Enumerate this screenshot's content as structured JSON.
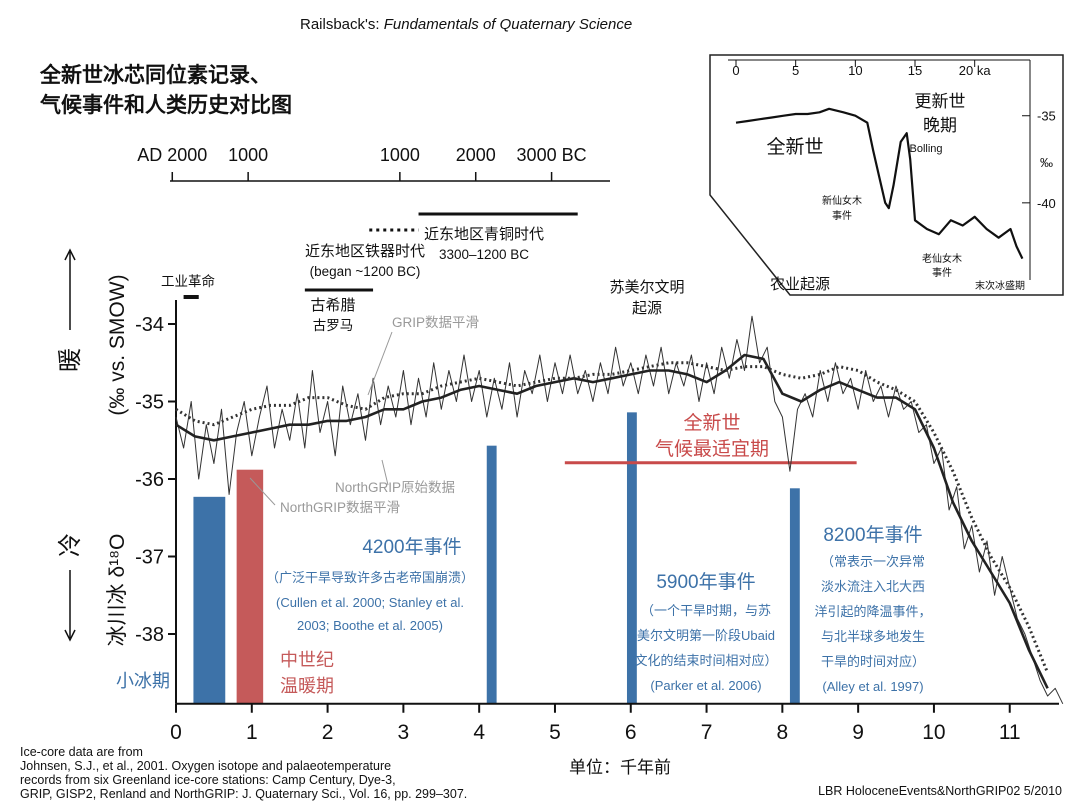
{
  "chart_data": {
    "type": "line",
    "header": [
      "Railsback's: ",
      "Fundamentals of Quaternary Science"
    ],
    "title_lines": [
      "全新世冰芯同位素记录、",
      "气候事件和人类历史对比图"
    ],
    "x_label": "单位：千年前",
    "y_label": "(‰ vs. SMOW)",
    "y_label2": "冰川冰 δ¹⁸O",
    "warm": "暖",
    "cold": "冷",
    "xlim": [
      0,
      11.65
    ],
    "xticks": [
      0,
      1,
      2,
      3,
      4,
      5,
      6,
      7,
      8,
      9,
      10,
      11
    ],
    "ylim": [
      -38.9,
      -33.5
    ],
    "yticks": [
      -34,
      -35,
      -36,
      -37,
      -38
    ],
    "top_axis": {
      "xlim": [
        -0.08,
        5.72
      ],
      "ticks": [
        {
          "value": -0.05,
          "label": "AD 2000"
        },
        {
          "value": 0.95,
          "label": "1000"
        },
        {
          "value": 2.95,
          "label": "1000"
        },
        {
          "value": 3.95,
          "label": "2000"
        },
        {
          "value": 4.95,
          "label": "3000 BC"
        }
      ]
    },
    "series": [
      {
        "name": "NorthGRIP原始数据",
        "color": "#333333",
        "line_style": "thin",
        "x": [
          0,
          0.1,
          0.2,
          0.3,
          0.4,
          0.5,
          0.6,
          0.7,
          0.8,
          0.9,
          1,
          1.1,
          1.2,
          1.3,
          1.4,
          1.5,
          1.6,
          1.7,
          1.8,
          1.9,
          2,
          2.1,
          2.2,
          2.3,
          2.4,
          2.5,
          2.6,
          2.7,
          2.8,
          2.9,
          3,
          3.1,
          3.2,
          3.3,
          3.4,
          3.5,
          3.6,
          3.7,
          3.8,
          3.9,
          4,
          4.1,
          4.2,
          4.3,
          4.4,
          4.5,
          4.6,
          4.7,
          4.8,
          4.9,
          5,
          5.1,
          5.2,
          5.3,
          5.4,
          5.5,
          5.6,
          5.7,
          5.8,
          5.9,
          6,
          6.1,
          6.2,
          6.3,
          6.4,
          6.5,
          6.6,
          6.7,
          6.8,
          6.9,
          7,
          7.1,
          7.2,
          7.3,
          7.4,
          7.5,
          7.6,
          7.7,
          7.8,
          7.9,
          8,
          8.1,
          8.2,
          8.3,
          8.4,
          8.5,
          8.6,
          8.7,
          8.8,
          8.9,
          9,
          9.1,
          9.2,
          9.3,
          9.4,
          9.5,
          9.6,
          9.7,
          9.8,
          9.9,
          10,
          10.1,
          10.2,
          10.3,
          10.4,
          10.5,
          10.6,
          10.7,
          10.8,
          10.9,
          11,
          11.1,
          11.2,
          11.3,
          11.4,
          11.5,
          11.6,
          11.7
        ],
        "values": [
          -35.2,
          -35.6,
          -35.0,
          -36.0,
          -35.3,
          -35.8,
          -35.1,
          -36.2,
          -35.4,
          -35.0,
          -35.7,
          -35.2,
          -34.8,
          -35.6,
          -35.1,
          -35.5,
          -34.9,
          -35.6,
          -34.6,
          -35.4,
          -35.0,
          -35.7,
          -34.8,
          -35.3,
          -34.9,
          -35.5,
          -34.7,
          -35.3,
          -34.8,
          -35.2,
          -34.6,
          -35.3,
          -34.7,
          -35.2,
          -34.5,
          -35.1,
          -34.6,
          -35.0,
          -34.4,
          -35.0,
          -34.6,
          -35.2,
          -34.7,
          -35.1,
          -34.5,
          -35.2,
          -34.6,
          -34.9,
          -34.4,
          -35.0,
          -34.5,
          -34.9,
          -34.4,
          -34.9,
          -34.6,
          -35.0,
          -34.5,
          -34.9,
          -34.3,
          -34.8,
          -34.5,
          -34.9,
          -34.4,
          -34.8,
          -34.3,
          -34.9,
          -34.5,
          -34.8,
          -34.4,
          -35.0,
          -34.5,
          -34.9,
          -34.3,
          -34.7,
          -34.2,
          -34.6,
          -33.9,
          -34.5,
          -34.3,
          -35.0,
          -35.2,
          -35.9,
          -35.1,
          -34.9,
          -35.2,
          -34.6,
          -35.0,
          -34.5,
          -34.9,
          -34.7,
          -35.1,
          -34.6,
          -35.0,
          -34.8,
          -35.2,
          -34.8,
          -35.1,
          -35.0,
          -35.4,
          -35.3,
          -35.8,
          -35.6,
          -36.4,
          -36.1,
          -36.9,
          -36.6,
          -37.2,
          -36.8,
          -37.5,
          -37.0,
          -37.4,
          -37.8,
          -38.0,
          -38.3,
          -38.6,
          -38.8,
          -38.7,
          -38.9
        ]
      },
      {
        "name": "NorthGRIP数据平滑",
        "color": "#222222",
        "line_style": "thick",
        "x": [
          0,
          0.25,
          0.5,
          0.75,
          1,
          1.25,
          1.5,
          1.75,
          2,
          2.25,
          2.5,
          2.75,
          3,
          3.25,
          3.5,
          3.75,
          4,
          4.25,
          4.5,
          4.75,
          5,
          5.25,
          5.5,
          5.75,
          6,
          6.25,
          6.5,
          6.75,
          7,
          7.25,
          7.5,
          7.75,
          8,
          8.25,
          8.5,
          8.75,
          9,
          9.25,
          9.5,
          9.75,
          10,
          10.25,
          10.5,
          10.75,
          11,
          11.25,
          11.5
        ],
        "values": [
          -35.3,
          -35.45,
          -35.5,
          -35.45,
          -35.4,
          -35.35,
          -35.3,
          -35.3,
          -35.25,
          -35.25,
          -35.2,
          -35.1,
          -35.1,
          -35.0,
          -34.95,
          -34.85,
          -34.8,
          -34.85,
          -34.9,
          -34.8,
          -34.75,
          -34.7,
          -34.75,
          -34.7,
          -34.65,
          -34.6,
          -34.6,
          -34.65,
          -34.75,
          -34.6,
          -34.4,
          -34.45,
          -34.9,
          -35.0,
          -34.85,
          -34.75,
          -34.85,
          -34.95,
          -34.95,
          -35.1,
          -35.6,
          -36.3,
          -36.8,
          -37.2,
          -37.6,
          -38.2,
          -38.7
        ]
      },
      {
        "name": "GRIP数据平滑",
        "color": "#333333",
        "line_style": "dotted",
        "x": [
          0,
          0.25,
          0.5,
          0.75,
          1,
          1.25,
          1.5,
          1.75,
          2,
          2.25,
          2.5,
          2.75,
          3,
          3.25,
          3.5,
          3.75,
          4,
          4.25,
          4.5,
          4.75,
          5,
          5.25,
          5.5,
          5.75,
          6,
          6.25,
          6.5,
          6.75,
          7,
          7.25,
          7.5,
          7.75,
          8,
          8.25,
          8.5,
          8.75,
          9,
          9.25,
          9.5,
          9.75,
          10,
          10.25,
          10.5,
          10.75,
          11,
          11.25,
          11.5
        ],
        "values": [
          -35.1,
          -35.25,
          -35.3,
          -35.2,
          -35.1,
          -35.05,
          -35.05,
          -34.95,
          -34.95,
          -35.05,
          -35.1,
          -34.95,
          -34.9,
          -34.9,
          -34.8,
          -34.75,
          -34.7,
          -34.75,
          -34.8,
          -34.75,
          -34.7,
          -34.7,
          -34.65,
          -34.65,
          -34.6,
          -34.55,
          -34.5,
          -34.5,
          -34.55,
          -34.6,
          -34.55,
          -34.55,
          -34.65,
          -34.7,
          -34.65,
          -34.55,
          -34.6,
          -34.75,
          -34.85,
          -35.0,
          -35.4,
          -35.9,
          -36.5,
          -37.0,
          -37.4,
          -37.9,
          -38.5
        ]
      }
    ],
    "events": [
      {
        "label_lines": [
          "小冰期"
        ],
        "x": 0.23,
        "x_end": 0.65,
        "top": -36.23,
        "color": "#3d72a8"
      },
      {
        "label_lines": [
          "中世纪",
          "温暖期"
        ],
        "x": 0.8,
        "x_end": 1.15,
        "top": -35.88,
        "color": "#c55a5a"
      },
      {
        "label_lines": [
          "4200年事件",
          "（广泛干旱导致许多古老帝国崩溃）",
          "(Cullen et al. 2000; Stanley et al.",
          "2003; Boothe et al. 2005)"
        ],
        "x": 4.1,
        "x_end": 4.23,
        "top": -35.57,
        "color": "#3d72a8"
      },
      {
        "label_lines": [
          "5900年事件",
          "（一个干旱时期，与苏",
          "美尔文明第一阶段Ubaid",
          "文化的结束时间相对应）",
          "(Parker et al. 2006)"
        ],
        "x": 5.95,
        "x_end": 6.08,
        "top": -35.14,
        "color": "#3d72a8"
      },
      {
        "label_lines": [
          "8200年事件",
          "（常表示一次异常",
          "淡水流注入北大西",
          "洋引起的降温事件，",
          "与北半球多地发生",
          "干旱的时间对应）",
          "(Alley et al. 1997)"
        ],
        "x": 8.1,
        "x_end": 8.23,
        "top": -36.12,
        "color": "#3d72a8"
      }
    ],
    "optimum": {
      "label_lines": [
        "全新世",
        "气候最适宜期"
      ],
      "x": 5.13,
      "x_end": 8.98,
      "value": -35.79,
      "color": "#c84a4a"
    },
    "periods": [
      {
        "label_lines": [
          "工业革命"
        ],
        "start": 0.1,
        "end": 0.3
      },
      {
        "label_lines": [
          "古希腊",
          "古罗马"
        ],
        "start": 1.7,
        "end": 2.6
      },
      {
        "label_lines": [
          "近东地区铁器时代",
          "(began ~1200 BC)"
        ],
        "start": 2.55,
        "end": 3.2
      },
      {
        "label_lines": [
          "近东地区青铜时代",
          "3300–1200 BC"
        ],
        "start": 3.2,
        "end": 5.3
      }
    ],
    "annotations": [
      [
        "苏美尔文明",
        "起源"
      ],
      [
        "农业起源"
      ]
    ],
    "inset": {
      "xlim": [
        0,
        24.3
      ],
      "ylim": [
        -44.2,
        -31.8
      ],
      "xticks": [
        0,
        5,
        10,
        15,
        {
          "value": 20,
          "label": "20 ka"
        }
      ],
      "yticks": [
        -35,
        -40
      ],
      "y_unit": "‰",
      "x": [
        0,
        1,
        2,
        3,
        4,
        5,
        6,
        7,
        7.8,
        9,
        10,
        11,
        11.5,
        12,
        12.5,
        12.8,
        13.2,
        13.8,
        14.3,
        14.6,
        15,
        16,
        17,
        18,
        19,
        20,
        21,
        22,
        23,
        23.5,
        24
      ],
      "values": [
        -35.4,
        -35.3,
        -35.2,
        -35.1,
        -35.0,
        -34.9,
        -34.9,
        -34.8,
        -34.6,
        -34.8,
        -35.0,
        -35.4,
        -37.0,
        -38.5,
        -40.0,
        -40.3,
        -39.0,
        -36.5,
        -36.0,
        -37.5,
        -41.0,
        -41.5,
        -41.8,
        -41.0,
        -41.3,
        -40.8,
        -41.5,
        -42.0,
        -41.5,
        -42.5,
        -43.2
      ],
      "labels": [
        [
          "全新世"
        ],
        [
          "更新世",
          "晚期"
        ],
        [
          "Bolling"
        ],
        [
          "新仙女木",
          "事件"
        ],
        [
          "老仙女木",
          "事件"
        ],
        [
          "末次冰盛期"
        ]
      ]
    },
    "footer_lines": [
      "Ice-core data are from",
      "Johnsen, S.J., et al., 2001. Oxygen isotope and palaeotemperature",
      "records from six Greenland ice-core stations: Camp Century, Dye-3,",
      "GRIP, GISP2, Renland and NorthGRIP: J. Quaternary Sci., Vol. 16, pp. 299–307."
    ],
    "credit": "LBR HoloceneEvents&NorthGRIP02  5/2010"
  }
}
